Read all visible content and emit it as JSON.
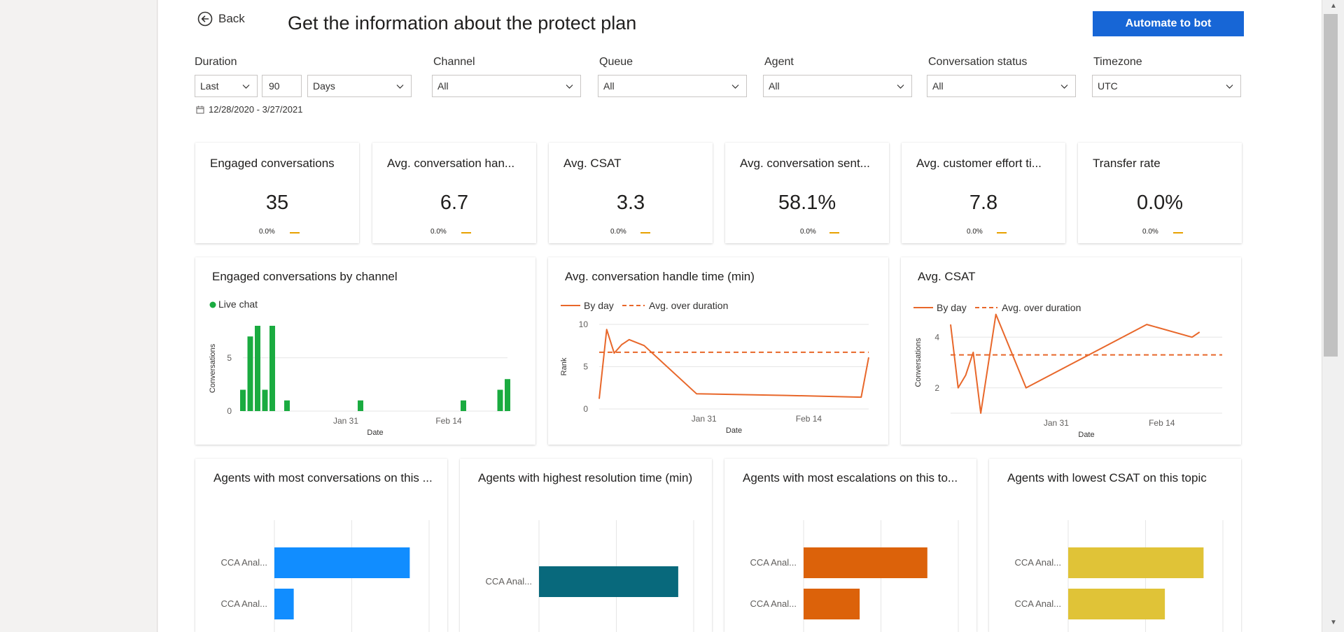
{
  "header": {
    "back_label": "Back",
    "title": "Get the information about the protect plan",
    "automate_label": "Automate to bot"
  },
  "filters": {
    "duration_label": "Duration",
    "duration_mode": "Last",
    "duration_count": "90",
    "duration_unit": "Days",
    "channel_label": "Channel",
    "channel_value": "All",
    "queue_label": "Queue",
    "queue_value": "All",
    "agent_label": "Agent",
    "agent_value": "All",
    "status_label": "Conversation status",
    "status_value": "All",
    "timezone_label": "Timezone",
    "timezone_value": "UTC",
    "date_range": "12/28/2020 - 3/27/2021"
  },
  "kpis": [
    {
      "title": "Engaged conversations",
      "value": "35",
      "delta": "0.0%"
    },
    {
      "title": "Avg. conversation han...",
      "value": "6.7",
      "delta": "0.0%"
    },
    {
      "title": "Avg. CSAT",
      "value": "3.3",
      "delta": "0.0%"
    },
    {
      "title": "Avg. conversation sent...",
      "value": "58.1%",
      "delta": "0.0%"
    },
    {
      "title": "Avg. customer effort ti...",
      "value": "7.8",
      "delta": "0.0%"
    },
    {
      "title": "Transfer rate",
      "value": "0.0%",
      "delta": "0.0%"
    }
  ],
  "colors": {
    "accent_blue": "#1766d6",
    "live_chat_green": "#1aab40",
    "line_orange": "#e8672a",
    "bar_blue": "#118dff",
    "bar_teal": "#08697c",
    "bar_orange": "#dc620a",
    "bar_yellow": "#e0c337",
    "kpi_dash": "#e8a100"
  },
  "chart_data": [
    {
      "id": "engaged_by_channel",
      "type": "bar",
      "title": "Engaged conversations by channel",
      "legend": [
        "Live chat"
      ],
      "xlabel": "Date",
      "ylabel": "Conversations",
      "ylim": [
        0,
        8
      ],
      "yticks": [
        "0",
        "5"
      ],
      "xticks": [
        "Jan 31",
        "Feb 14"
      ],
      "x": [
        1,
        2,
        3,
        4,
        5,
        7,
        17,
        31,
        36,
        37
      ],
      "values": [
        2,
        7,
        8,
        2,
        8,
        1,
        1,
        1,
        2,
        3
      ]
    },
    {
      "id": "avg_handle_time",
      "type": "line",
      "title": "Avg. conversation handle time (min)",
      "legend": [
        "By day",
        "Avg. over duration"
      ],
      "xlabel": "Date",
      "ylabel": "Rank",
      "ylim": [
        0,
        10
      ],
      "yticks": [
        "0",
        "5",
        "10"
      ],
      "xticks": [
        "Jan 31",
        "Feb 14"
      ],
      "x": [
        1,
        2,
        3,
        4,
        5,
        7,
        14,
        26,
        36,
        37
      ],
      "values": [
        1.2,
        9.4,
        6.6,
        7.6,
        8.2,
        7.5,
        1.8,
        1.6,
        1.4,
        6.1
      ],
      "average": 6.7
    },
    {
      "id": "avg_csat",
      "type": "line",
      "title": "Avg. CSAT",
      "legend": [
        "By day",
        "Avg. over duration"
      ],
      "xlabel": "Date",
      "ylabel": "Conversations",
      "ylim": [
        1,
        5
      ],
      "yticks": [
        "2",
        "4"
      ],
      "xticks": [
        "Jan 31",
        "Feb 14"
      ],
      "x": [
        1,
        2,
        3,
        4,
        5,
        7,
        11,
        27,
        33,
        34
      ],
      "values": [
        4.5,
        2.0,
        2.5,
        3.4,
        1.0,
        4.9,
        2.0,
        4.5,
        4.0,
        4.2
      ],
      "average": 3.3
    },
    {
      "id": "most_conversations",
      "type": "bar",
      "orientation": "horizontal",
      "title": "Agents with most conversations on this ...",
      "categories": [
        "CCA Anal...",
        "CCA Anal..."
      ],
      "values": [
        3.5,
        0.5
      ],
      "xlim": [
        0,
        4
      ]
    },
    {
      "id": "highest_resolution",
      "type": "bar",
      "orientation": "horizontal",
      "title": "Agents with highest resolution time (min)",
      "categories": [
        "CCA Anal..."
      ],
      "values": [
        3.6
      ],
      "xlim": [
        0,
        4
      ]
    },
    {
      "id": "most_escalations",
      "type": "bar",
      "orientation": "horizontal",
      "title": "Agents with most escalations on this to...",
      "categories": [
        "CCA Anal...",
        "CCA Anal..."
      ],
      "values": [
        3.2,
        1.45
      ],
      "xlim": [
        0,
        4
      ]
    },
    {
      "id": "lowest_csat",
      "type": "bar",
      "orientation": "horizontal",
      "title": "Agents with lowest CSAT on this topic",
      "categories": [
        "CCA Anal...",
        "CCA Anal..."
      ],
      "values": [
        3.5,
        2.5
      ],
      "xlim": [
        0,
        4
      ]
    }
  ]
}
